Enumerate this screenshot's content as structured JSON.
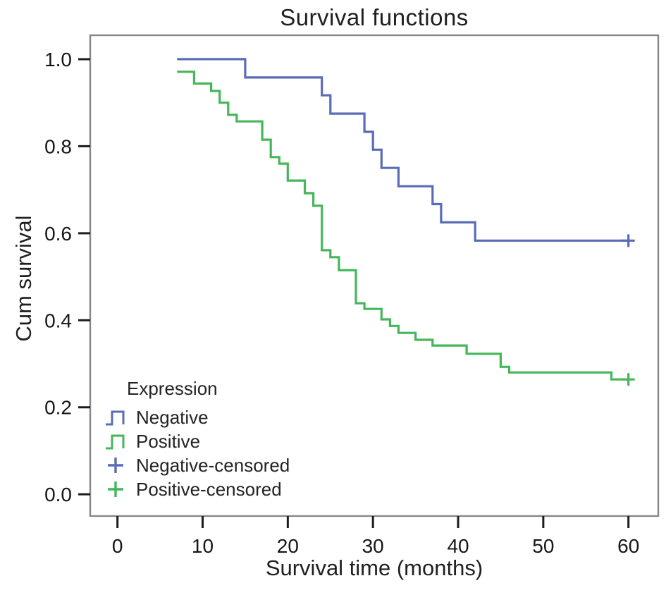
{
  "chart_data": {
    "type": "line",
    "variant": "kaplan_meier_step_plot",
    "title": "Survival functions",
    "xlabel": "Survival time (months)",
    "ylabel": "Cum survival",
    "grid": false,
    "xlim": [
      -3.2,
      63.5
    ],
    "ylim": [
      -0.05,
      1.055
    ],
    "xticks": [
      0,
      10,
      20,
      30,
      40,
      50,
      60
    ],
    "xtick_labels": [
      "0",
      "10",
      "20",
      "30",
      "40",
      "50",
      "60"
    ],
    "yticks": [
      0.0,
      0.2,
      0.4,
      0.6,
      0.8,
      1.0
    ],
    "ytick_labels": [
      "0.0",
      "0.2",
      "0.4",
      "0.6",
      "0.8",
      "1.0"
    ],
    "legend": {
      "title": "Expression",
      "position": "lower-left-inside",
      "entries": [
        {
          "label": "Negative",
          "symbol": "step",
          "color": "#5a6cb5"
        },
        {
          "label": "Positive",
          "symbol": "step",
          "color": "#45b75a"
        },
        {
          "label": "Negative-censored",
          "symbol": "plus",
          "color": "#5a6cb5"
        },
        {
          "label": "Positive-censored",
          "symbol": "plus",
          "color": "#45b75a"
        }
      ]
    },
    "series": [
      {
        "name": "Negative",
        "color": "#5a6cb5",
        "start": {
          "t": 7,
          "s": 1.0
        },
        "drops": [
          [
            15,
            0.958
          ],
          [
            24,
            0.917
          ],
          [
            25,
            0.875
          ],
          [
            29,
            0.833
          ],
          [
            30,
            0.792
          ],
          [
            31,
            0.75
          ],
          [
            33,
            0.708
          ],
          [
            37,
            0.667
          ],
          [
            38,
            0.625
          ],
          [
            42,
            0.583
          ]
        ],
        "end_t": 60,
        "censored": [
          [
            60,
            0.583
          ]
        ]
      },
      {
        "name": "Positive",
        "color": "#45b75a",
        "start": {
          "t": 7,
          "s": 0.971
        },
        "drops": [
          [
            9,
            0.944
          ],
          [
            11,
            0.927
          ],
          [
            12,
            0.9
          ],
          [
            13,
            0.872
          ],
          [
            14,
            0.857
          ],
          [
            17,
            0.815
          ],
          [
            18,
            0.775
          ],
          [
            19,
            0.76
          ],
          [
            20,
            0.721
          ],
          [
            22,
            0.692
          ],
          [
            23,
            0.663
          ],
          [
            24,
            0.561
          ],
          [
            25,
            0.545
          ],
          [
            26,
            0.515
          ],
          [
            28,
            0.439
          ],
          [
            29,
            0.426
          ],
          [
            31,
            0.402
          ],
          [
            32,
            0.387
          ],
          [
            33,
            0.371
          ],
          [
            35,
            0.355
          ],
          [
            37,
            0.342
          ],
          [
            41,
            0.323
          ],
          [
            45,
            0.293
          ],
          [
            46,
            0.28
          ],
          [
            58,
            0.264
          ]
        ],
        "end_t": 60,
        "censored": [
          [
            60,
            0.264
          ]
        ]
      }
    ],
    "style": {
      "plot_border_color": "#878787",
      "tick_color": "#1c1c1c",
      "background": "#ffffff",
      "curve_stroke_width": 3.2
    }
  }
}
